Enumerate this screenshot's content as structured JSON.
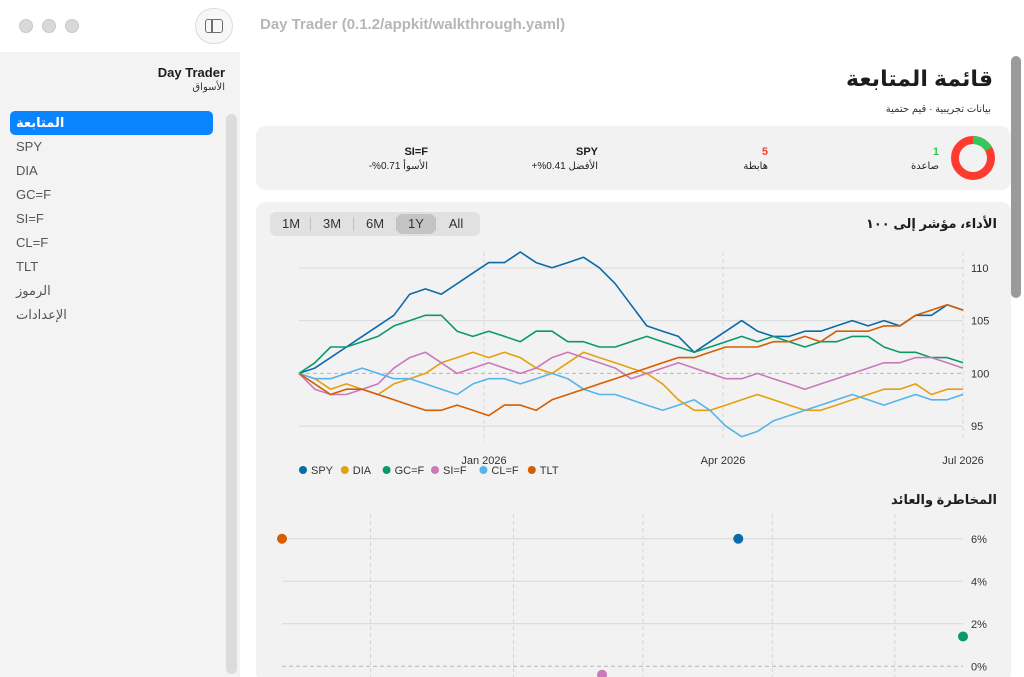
{
  "window": {
    "title": "Day Trader (0.1.2/appkit/walkthrough.yaml)"
  },
  "sidebar": {
    "app_name": "Day Trader",
    "subtitle": "الأسواق",
    "items": [
      {
        "label": "المتابعة",
        "active": true
      },
      {
        "label": "SPY"
      },
      {
        "label": "DIA"
      },
      {
        "label": "GC=F"
      },
      {
        "label": "SI=F"
      },
      {
        "label": "CL=F"
      },
      {
        "label": "TLT"
      },
      {
        "label": "الرموز"
      },
      {
        "label": "الإعدادات"
      }
    ]
  },
  "page": {
    "title": "قائمة المتابعة",
    "subtitle": "بيانات تجريبية · قيم حتمية"
  },
  "summary": {
    "up_count": "1",
    "up_label": "صاعدة",
    "down_count": "5",
    "down_label": "هابطة",
    "best_symbol": "SPY",
    "best_label": "الأفضل 0.41%+",
    "worst_symbol": "SI=F",
    "worst_label": "الأسوأ 0.71%-",
    "donut_colors": {
      "up": "#34c759",
      "down": "#ff3b30"
    },
    "donut_up_fraction": 0.167
  },
  "range_buttons": [
    "1M",
    "3M",
    "6M",
    "1Y",
    "All"
  ],
  "range_selected": "1Y",
  "performance": {
    "title": "الأداء، مؤشر إلى ١٠٠"
  },
  "risk": {
    "title": "المخاطرة والعائد"
  },
  "chart_data": [
    {
      "type": "line",
      "title": "الأداء، مؤشر إلى ١٠٠",
      "x_ticks": [
        "Jan 2026",
        "Apr 2026",
        "Jul 2026"
      ],
      "y_ticks": [
        95,
        100,
        105,
        110
      ],
      "ylim": [
        93.5,
        111.5
      ],
      "baseline": 100,
      "grid": true,
      "legend_position": "bottom-left",
      "series": [
        {
          "name": "SPY",
          "color": "#0b6aa8",
          "values": [
            100,
            100.5,
            101.5,
            102.5,
            103.5,
            104.5,
            105.5,
            107.5,
            108,
            107.5,
            108.5,
            109.5,
            110.5,
            110.5,
            111.5,
            110.5,
            110,
            110.5,
            111,
            110,
            108.5,
            106.5,
            104.5,
            104,
            103.5,
            102,
            103,
            104,
            105,
            104,
            103.5,
            103.5,
            104,
            104,
            104.5,
            105,
            104.5,
            105,
            104.5,
            105.5,
            105.5,
            106.5,
            106
          ]
        },
        {
          "name": "DIA",
          "color": "#e5a00d",
          "values": [
            100,
            99.5,
            98.5,
            99,
            98.5,
            98,
            99,
            99.5,
            100,
            101,
            101.5,
            102,
            101.5,
            102,
            101.5,
            100.5,
            100,
            101,
            102,
            101.5,
            101,
            100.5,
            100,
            99,
            97.5,
            96.5,
            96.5,
            97,
            97.5,
            98,
            97.5,
            97,
            96.5,
            96.5,
            97,
            97.5,
            98,
            98.5,
            98.5,
            99,
            98,
            98.5,
            98.5
          ]
        },
        {
          "name": "GC=F",
          "color": "#0a9a6a",
          "values": [
            100,
            101,
            102.5,
            102.5,
            103,
            103.5,
            104.5,
            105,
            105.5,
            105.5,
            104,
            103.5,
            104,
            103.5,
            103,
            104,
            104,
            103,
            103,
            102.5,
            102.5,
            103,
            103.5,
            103,
            102.5,
            102,
            102.5,
            103,
            103.5,
            103,
            103.5,
            103,
            102.5,
            103,
            103,
            103.5,
            103.5,
            102.5,
            102,
            102,
            101.5,
            101.5,
            101
          ]
        },
        {
          "name": "SI=F",
          "color": "#cc78bc",
          "values": [
            100,
            98.5,
            98,
            98,
            98.5,
            99,
            100.5,
            101.5,
            102,
            101,
            100,
            100.5,
            101,
            100.5,
            100,
            100.5,
            101.5,
            102,
            101.5,
            101,
            100.5,
            99.5,
            100,
            100.5,
            101,
            100.5,
            100,
            99.5,
            99.5,
            100,
            99.5,
            99,
            98.5,
            99,
            99.5,
            100,
            100.5,
            101,
            101,
            101.5,
            101.5,
            101,
            100.5
          ]
        },
        {
          "name": "CL=F",
          "color": "#56b4e9",
          "values": [
            100,
            99.5,
            99.5,
            100,
            100.5,
            100,
            99.5,
            99.5,
            99,
            98.5,
            98,
            99,
            99.5,
            99.5,
            99,
            99.5,
            100,
            99.5,
            98.5,
            98,
            98,
            97.5,
            97,
            96.5,
            97,
            97.5,
            96.5,
            95,
            94,
            94.5,
            95.5,
            96,
            96.5,
            97,
            97.5,
            98,
            97.5,
            97,
            97.5,
            98,
            97.5,
            97.5,
            98
          ]
        },
        {
          "name": "TLT",
          "color": "#d55e00",
          "values": [
            100,
            99,
            98,
            98.5,
            98.5,
            98,
            97.5,
            97,
            96.5,
            96.5,
            97,
            96.5,
            96,
            97,
            97,
            96.5,
            97.5,
            98,
            98.5,
            99,
            99.5,
            100,
            100.5,
            101,
            101.5,
            101.5,
            102,
            102.5,
            102.5,
            102.5,
            103,
            103,
            103.5,
            103,
            104,
            104,
            104,
            104.5,
            104.5,
            105.5,
            106,
            106.5,
            106
          ]
        }
      ]
    },
    {
      "type": "scatter",
      "title": "المخاطرة والعائد",
      "y_ticks": [
        "6%",
        "4%",
        "2%",
        "0%"
      ],
      "ylim": [
        -0.6,
        6.6
      ],
      "grid": true,
      "points": [
        {
          "symbol": "TLT",
          "color": "#d55e00",
          "risk": 0,
          "return": 6
        },
        {
          "symbol": "SPY",
          "color": "#0b6aa8",
          "risk": 0.67,
          "return": 6
        },
        {
          "symbol": "SI=F",
          "color": "#cc78bc",
          "risk": 0.47,
          "return": -0.4
        },
        {
          "symbol": "GC=F",
          "color": "#0a9a6a",
          "risk": 1,
          "return": 1.4
        }
      ]
    }
  ]
}
